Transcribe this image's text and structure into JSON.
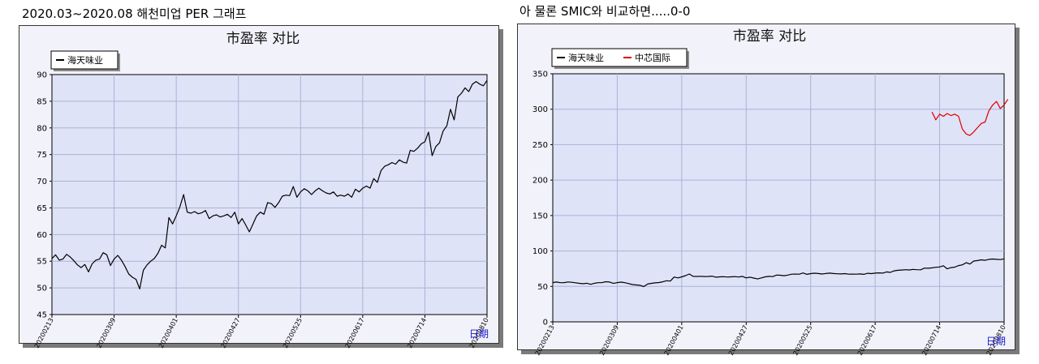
{
  "captions": {
    "left": "2020.03~2020.08 해천미업 PER 그래프",
    "right": "아 물론 SMIC와 비교하면.....0-0"
  },
  "chart_data": [
    {
      "type": "line",
      "title": "市盈率  对比",
      "xlabel": "日期",
      "x_ticks": [
        "20200213",
        "20200309",
        "20200401",
        "20200427",
        "20200525",
        "20200617",
        "20200714",
        "20200810"
      ],
      "ylim": [
        45,
        90
      ],
      "y_ticks": [
        "45",
        "50",
        "55",
        "60",
        "65",
        "70",
        "75",
        "80",
        "85",
        "90"
      ],
      "legend": "top-left",
      "grid": true,
      "series": [
        {
          "name": "海天味业",
          "color": "#000000",
          "values": [
            55.5,
            56.2,
            55.2,
            55.4,
            56.3,
            55.8,
            55.1,
            54.3,
            53.8,
            54.4,
            53.0,
            54.5,
            55.2,
            55.4,
            56.6,
            56.2,
            54.2,
            55.4,
            56.1,
            55.2,
            54.0,
            52.6,
            52.0,
            51.6,
            49.8,
            53.3,
            54.3,
            55.0,
            55.5,
            56.5,
            58.0,
            57.5,
            63.2,
            62.0,
            63.5,
            65.2,
            67.5,
            64.2,
            64.0,
            64.3,
            63.9,
            64.1,
            64.5,
            63.0,
            63.5,
            63.7,
            63.3,
            63.5,
            63.8,
            63.2,
            64.2,
            62.0,
            63.0,
            61.8,
            60.5,
            62.0,
            63.5,
            64.2,
            63.8,
            66.0,
            65.8,
            65.1,
            66.0,
            67.2,
            67.4,
            67.3,
            69.0,
            67.0,
            68.0,
            68.6,
            68.2,
            67.5,
            68.2,
            68.7,
            68.2,
            67.8,
            67.6,
            68.0,
            67.2,
            67.4,
            67.2,
            67.6,
            67.0,
            68.5,
            68.0,
            68.7,
            69.1,
            68.7,
            70.5,
            69.8,
            72.0,
            72.8,
            73.1,
            73.5,
            73.2,
            74.0,
            73.6,
            73.4,
            75.8,
            75.6,
            76.2,
            77.0,
            77.4,
            79.2,
            74.8,
            76.5,
            77.2,
            79.4,
            80.4,
            83.5,
            81.5,
            85.8,
            86.5,
            87.5,
            86.8,
            88.2,
            88.7,
            88.2,
            87.9,
            88.9
          ]
        }
      ]
    },
    {
      "type": "line",
      "title": "市盈率  对比",
      "xlabel": "日期",
      "x_ticks": [
        "20200213",
        "20200309",
        "20200401",
        "20200427",
        "20200525",
        "20200617",
        "20200714",
        "20200810"
      ],
      "ylim": [
        0,
        350
      ],
      "y_ticks": [
        "0",
        "50",
        "100",
        "150",
        "200",
        "250",
        "300",
        "350"
      ],
      "legend": "top-left",
      "grid": true,
      "series": [
        {
          "name": "海天味业",
          "color": "#000000",
          "values": [
            55.5,
            56.2,
            55.2,
            55.4,
            56.3,
            55.8,
            55.1,
            54.3,
            53.8,
            54.4,
            53.0,
            54.5,
            55.2,
            55.4,
            56.6,
            56.2,
            54.2,
            55.4,
            56.1,
            55.2,
            54.0,
            52.6,
            52.0,
            51.6,
            49.8,
            53.3,
            54.3,
            55.0,
            55.5,
            56.5,
            58.0,
            57.5,
            63.2,
            62.0,
            63.5,
            65.2,
            67.5,
            64.2,
            64.0,
            64.3,
            63.9,
            64.1,
            64.5,
            63.0,
            63.5,
            63.7,
            63.3,
            63.5,
            63.8,
            63.2,
            64.2,
            62.0,
            63.0,
            61.8,
            60.5,
            62.0,
            63.5,
            64.2,
            63.8,
            66.0,
            65.8,
            65.1,
            66.0,
            67.2,
            67.4,
            67.3,
            69.0,
            67.0,
            68.0,
            68.6,
            68.2,
            67.5,
            68.2,
            68.7,
            68.2,
            67.8,
            67.6,
            68.0,
            67.2,
            67.4,
            67.2,
            67.6,
            67.0,
            68.5,
            68.0,
            68.7,
            69.1,
            68.7,
            70.5,
            69.8,
            72.0,
            72.8,
            73.1,
            73.5,
            73.2,
            74.0,
            73.6,
            73.4,
            75.8,
            75.6,
            76.2,
            77.0,
            77.4,
            79.2,
            74.8,
            76.5,
            77.2,
            79.4,
            80.4,
            83.5,
            81.5,
            85.8,
            86.5,
            87.5,
            86.8,
            88.2,
            88.7,
            88.2,
            87.9,
            88.9
          ]
        },
        {
          "name": "中芯国际",
          "color": "#e00000",
          "start_index": 100,
          "values": [
            296,
            285,
            293,
            290,
            294,
            291,
            293,
            290,
            272,
            265,
            263,
            268,
            274,
            280,
            282,
            298,
            306,
            311,
            301,
            306,
            314
          ]
        }
      ]
    }
  ]
}
